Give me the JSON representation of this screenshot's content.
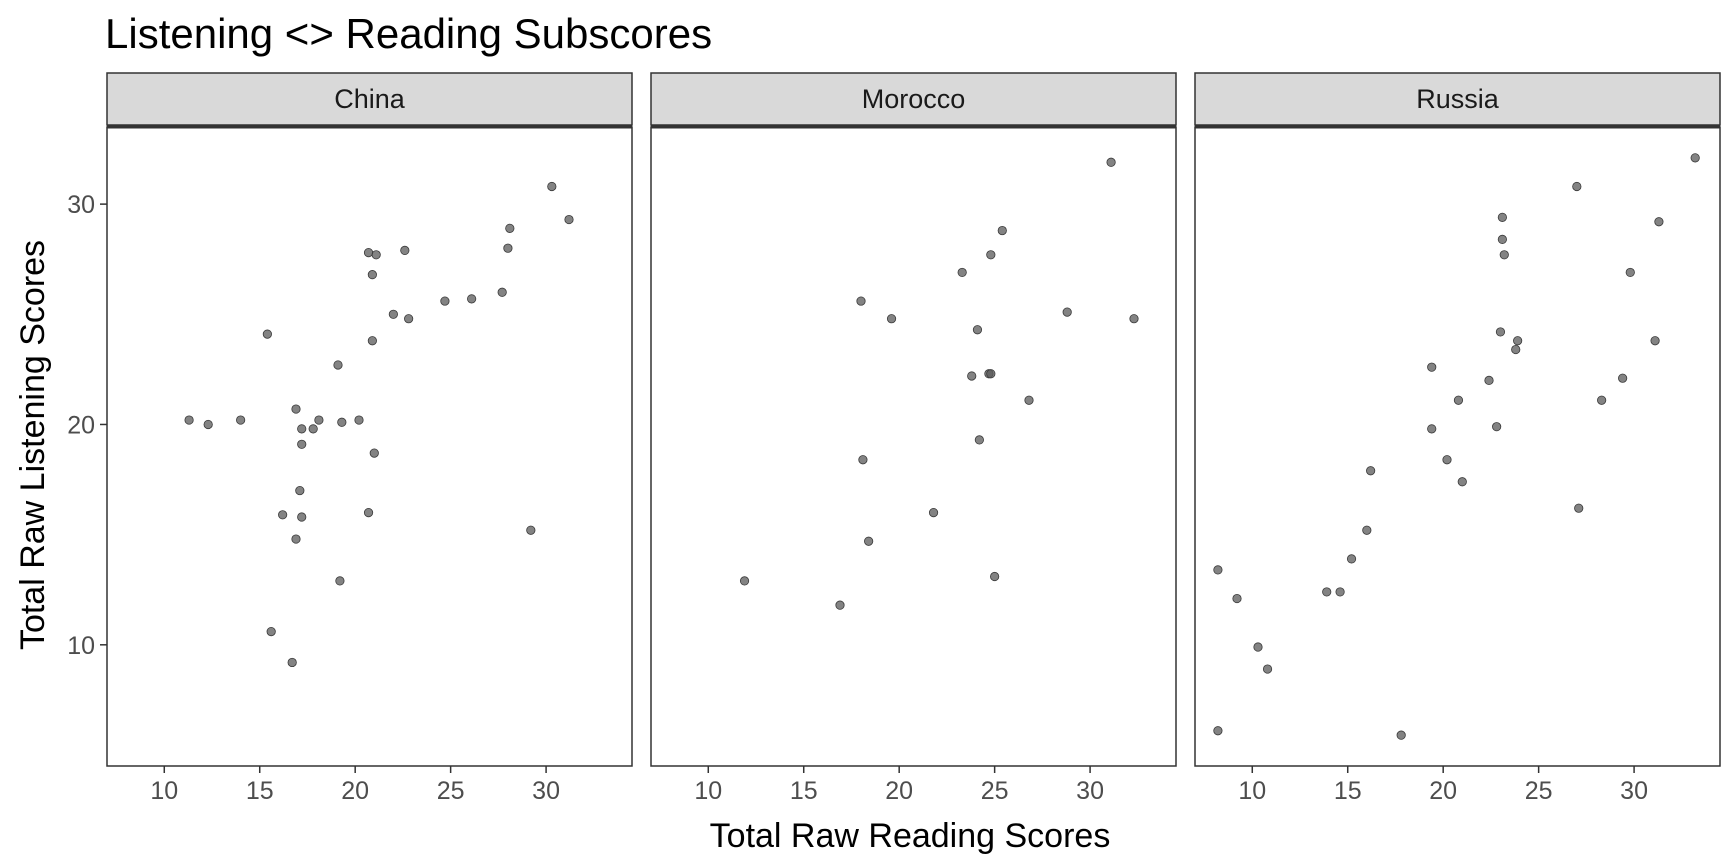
{
  "chart_data": {
    "type": "scatter",
    "title": "Listening <> Reading Subscores",
    "xlabel": "Total Raw Reading Scores",
    "ylabel": "Total Raw Listening Scores",
    "xlim": [
      7,
      34.5
    ],
    "ylim": [
      4.5,
      33.5
    ],
    "x_ticks": [
      "10",
      "15",
      "20",
      "25",
      "30"
    ],
    "y_ticks": [
      "10",
      "20",
      "30"
    ],
    "grid": false,
    "point_color": "#595959",
    "panels": [
      {
        "name": "China",
        "points": [
          [
            11.3,
            20.2
          ],
          [
            12.3,
            20.0
          ],
          [
            14.0,
            20.2
          ],
          [
            15.4,
            24.1
          ],
          [
            15.6,
            10.6
          ],
          [
            16.2,
            15.9
          ],
          [
            16.7,
            9.2
          ],
          [
            16.9,
            14.8
          ],
          [
            16.9,
            20.7
          ],
          [
            17.1,
            17.0
          ],
          [
            17.2,
            15.8
          ],
          [
            17.2,
            19.1
          ],
          [
            17.2,
            19.8
          ],
          [
            17.8,
            19.8
          ],
          [
            18.1,
            20.2
          ],
          [
            19.1,
            22.7
          ],
          [
            19.2,
            12.9
          ],
          [
            19.3,
            20.1
          ],
          [
            20.2,
            20.2
          ],
          [
            20.7,
            16.0
          ],
          [
            20.7,
            27.8
          ],
          [
            20.9,
            23.8
          ],
          [
            20.9,
            26.8
          ],
          [
            21.0,
            18.7
          ],
          [
            21.1,
            27.7
          ],
          [
            22.0,
            25.0
          ],
          [
            22.6,
            27.9
          ],
          [
            22.8,
            24.8
          ],
          [
            24.7,
            25.6
          ],
          [
            26.1,
            25.7
          ],
          [
            27.7,
            26.0
          ],
          [
            28.0,
            28.0
          ],
          [
            28.1,
            28.9
          ],
          [
            29.2,
            15.2
          ],
          [
            30.3,
            30.8
          ],
          [
            31.2,
            29.3
          ]
        ]
      },
      {
        "name": "Morocco",
        "points": [
          [
            11.9,
            12.9
          ],
          [
            16.9,
            11.8
          ],
          [
            18.0,
            25.6
          ],
          [
            18.1,
            18.4
          ],
          [
            18.4,
            14.7
          ],
          [
            19.6,
            24.8
          ],
          [
            21.8,
            16.0
          ],
          [
            23.3,
            26.9
          ],
          [
            23.8,
            22.2
          ],
          [
            24.1,
            24.3
          ],
          [
            24.2,
            19.3
          ],
          [
            24.7,
            22.3
          ],
          [
            24.8,
            22.3
          ],
          [
            24.8,
            27.7
          ],
          [
            25.0,
            13.1
          ],
          [
            25.4,
            28.8
          ],
          [
            26.8,
            21.1
          ],
          [
            28.8,
            25.1
          ],
          [
            31.1,
            31.9
          ],
          [
            32.3,
            24.8
          ]
        ]
      },
      {
        "name": "Russia",
        "points": [
          [
            8.2,
            13.4
          ],
          [
            8.2,
            6.1
          ],
          [
            9.2,
            12.1
          ],
          [
            10.3,
            9.9
          ],
          [
            10.8,
            8.9
          ],
          [
            13.9,
            12.4
          ],
          [
            14.6,
            12.4
          ],
          [
            15.2,
            13.9
          ],
          [
            16.0,
            15.2
          ],
          [
            16.2,
            17.9
          ],
          [
            17.8,
            5.9
          ],
          [
            19.4,
            22.6
          ],
          [
            19.4,
            19.8
          ],
          [
            20.2,
            18.4
          ],
          [
            20.8,
            21.1
          ],
          [
            21.0,
            17.4
          ],
          [
            22.4,
            22.0
          ],
          [
            22.8,
            19.9
          ],
          [
            23.0,
            24.2
          ],
          [
            23.1,
            29.4
          ],
          [
            23.1,
            28.4
          ],
          [
            23.2,
            27.7
          ],
          [
            23.8,
            23.4
          ],
          [
            23.9,
            23.8
          ],
          [
            27.0,
            30.8
          ],
          [
            27.1,
            16.2
          ],
          [
            28.3,
            21.1
          ],
          [
            29.4,
            22.1
          ],
          [
            29.8,
            26.9
          ],
          [
            31.1,
            23.8
          ],
          [
            31.3,
            29.2
          ],
          [
            33.2,
            32.1
          ]
        ]
      }
    ]
  }
}
